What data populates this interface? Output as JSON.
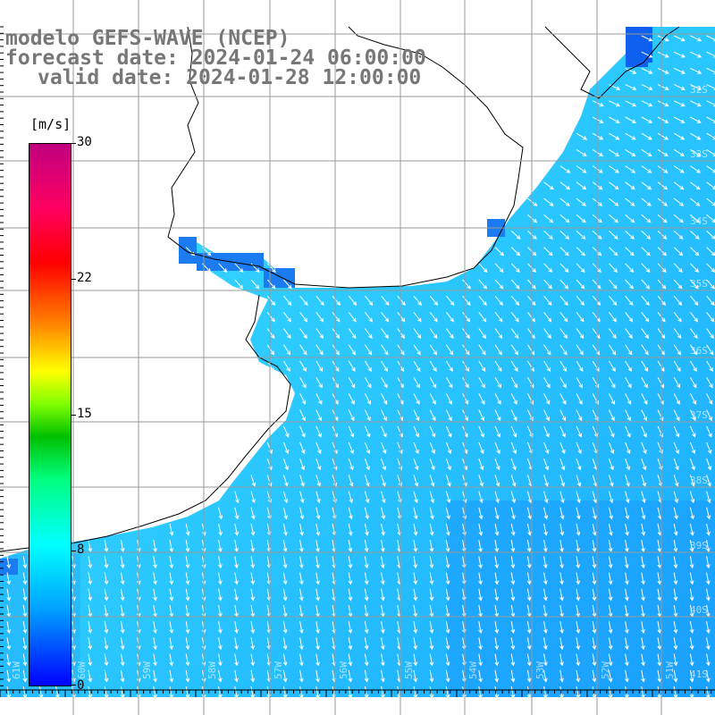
{
  "titles": {
    "line1": "modelo GEFS-WAVE (NCEP)",
    "line2": "forecast date: 2024-01-24 06:00:00",
    "line3": "valid date: 2024-01-28 12:00:00"
  },
  "colorbar": {
    "units": "[m/s]",
    "ticks": [
      "30",
      "22",
      "15",
      "8",
      "0"
    ],
    "tick_values": [
      30,
      22,
      15,
      8,
      0
    ],
    "min": 0,
    "max": 30,
    "colors": [
      "#0000ff",
      "#00a0ff",
      "#00ffff",
      "#00ff80",
      "#00c000",
      "#80ff00",
      "#ffff00",
      "#ff8000",
      "#ff0000",
      "#ff0060",
      "#c00080"
    ]
  },
  "map": {
    "lat_labels": [
      "32S",
      "33S",
      "34S",
      "35S",
      "36S",
      "37S",
      "38S",
      "39S",
      "40S",
      "41S"
    ],
    "lon_labels": [
      "61W",
      "60W",
      "59W",
      "58W",
      "57W",
      "56W",
      "55W",
      "54W",
      "53W",
      "52W",
      "51W"
    ],
    "sea_color": "#33ccff",
    "coast_color": "#1a8cff",
    "wind_direction": "from NE toward SW"
  }
}
